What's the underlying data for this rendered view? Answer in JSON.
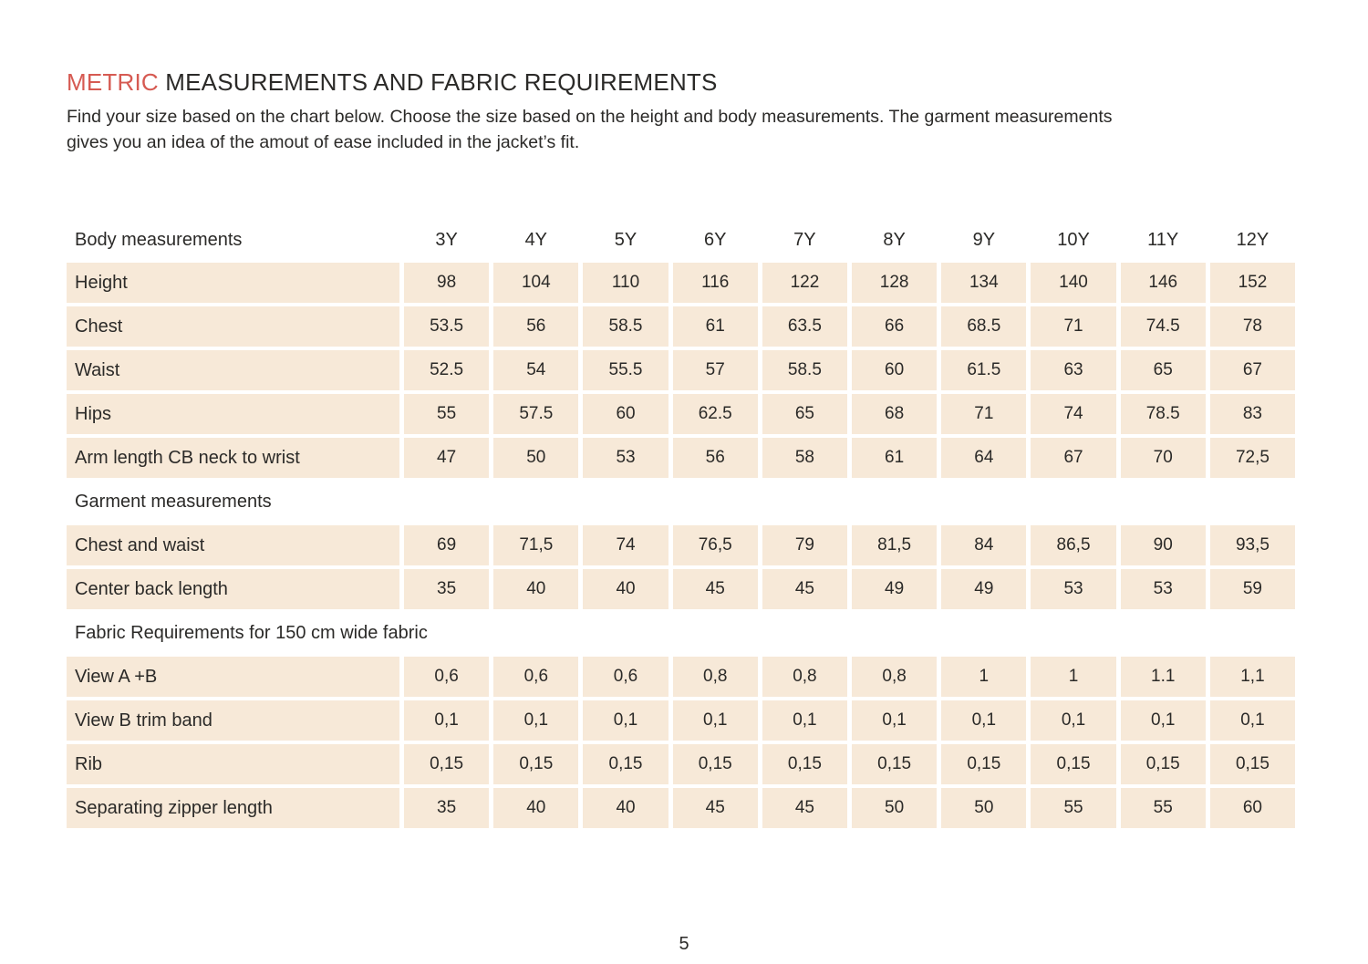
{
  "header": {
    "title_highlight": "METRIC",
    "title_rest": " MEASUREMENTS AND FABRIC REQUIREMENTS",
    "intro_line1": "Find your size based on the chart below. Choose the size based on the height and body measurements. The garment measurements",
    "intro_line2": "gives you an idea of the amout of ease included in the jacket’s fit."
  },
  "colors": {
    "accent": "#d65a52",
    "cell_bg": "#f7e9d8",
    "text": "#2b2a28",
    "page_bg": "#ffffff"
  },
  "table": {
    "header_label": "Body measurements",
    "sizes": [
      "3Y",
      "4Y",
      "5Y",
      "6Y",
      "7Y",
      "8Y",
      "9Y",
      "10Y",
      "11Y",
      "12Y"
    ],
    "rows": [
      {
        "type": "data",
        "label": "Height",
        "values": [
          "98",
          "104",
          "110",
          "116",
          "122",
          "128",
          "134",
          "140",
          "146",
          "152"
        ]
      },
      {
        "type": "data",
        "label": "Chest",
        "values": [
          "53.5",
          "56",
          "58.5",
          "61",
          "63.5",
          "66",
          "68.5",
          "71",
          "74.5",
          "78"
        ]
      },
      {
        "type": "data",
        "label": "Waist",
        "values": [
          "52.5",
          "54",
          "55.5",
          "57",
          "58.5",
          "60",
          "61.5",
          "63",
          "65",
          "67"
        ]
      },
      {
        "type": "data",
        "label": "Hips",
        "values": [
          "55",
          "57.5",
          "60",
          "62.5",
          "65",
          "68",
          "71",
          "74",
          "78.5",
          "83"
        ]
      },
      {
        "type": "data",
        "label": "Arm length CB neck to wrist",
        "values": [
          "47",
          "50",
          "53",
          "56",
          "58",
          "61",
          "64",
          "67",
          "70",
          "72,5"
        ]
      },
      {
        "type": "section",
        "label": "Garment measurements"
      },
      {
        "type": "data",
        "label": "Chest and waist",
        "values": [
          "69",
          "71,5",
          "74",
          "76,5",
          "79",
          "81,5",
          "84",
          "86,5",
          "90",
          "93,5"
        ]
      },
      {
        "type": "data",
        "label": "Center back length",
        "values": [
          "35",
          "40",
          "40",
          "45",
          "45",
          "49",
          "49",
          "53",
          "53",
          "59"
        ]
      },
      {
        "type": "section",
        "label": "Fabric Requirements for 150 cm wide fabric"
      },
      {
        "type": "data",
        "label": "View A +B",
        "values": [
          "0,6",
          "0,6",
          "0,6",
          "0,8",
          "0,8",
          "0,8",
          "1",
          "1",
          "1.1",
          "1,1"
        ]
      },
      {
        "type": "data",
        "label": "View B trim band",
        "values": [
          "0,1",
          "0,1",
          "0,1",
          "0,1",
          "0,1",
          "0,1",
          "0,1",
          "0,1",
          "0,1",
          "0,1"
        ]
      },
      {
        "type": "data",
        "label": "Rib",
        "values": [
          "0,15",
          "0,15",
          "0,15",
          "0,15",
          "0,15",
          "0,15",
          "0,15",
          "0,15",
          "0,15",
          "0,15"
        ]
      },
      {
        "type": "data",
        "label": "Separating zipper length",
        "values": [
          "35",
          "40",
          "40",
          "45",
          "45",
          "50",
          "50",
          "55",
          "55",
          "60"
        ]
      }
    ]
  },
  "footer": {
    "page_number": "5"
  }
}
